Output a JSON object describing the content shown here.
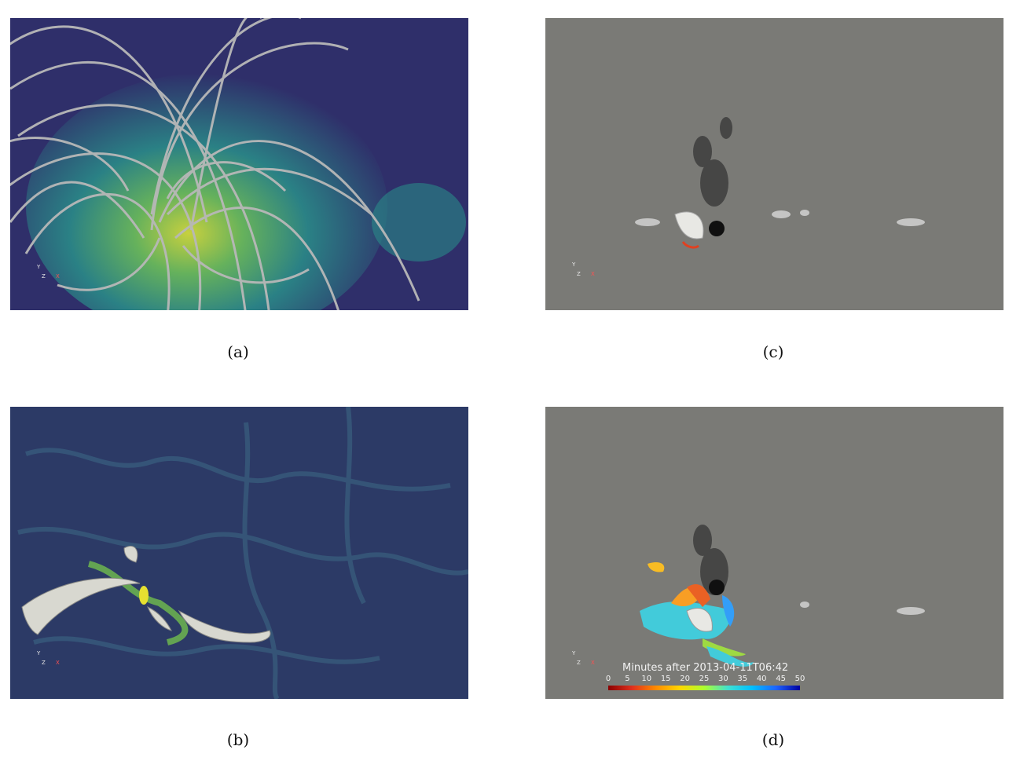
{
  "panels": [
    {
      "id": "a",
      "caption": "(a)",
      "background": "#30306a",
      "content": "EUV intensity map with grey magnetic field lines"
    },
    {
      "id": "b",
      "caption": "(b)",
      "background": "#2c3a66",
      "content": "Intensity map with white flux-rope field lines"
    },
    {
      "id": "c",
      "caption": "(c)",
      "background": "#7a7a76",
      "content": "Grayscale magnetogram with small flux rope"
    },
    {
      "id": "d",
      "caption": "(d)",
      "background": "#7a7a76",
      "content": "Grayscale magnetogram with flare ribbons colored by time"
    }
  ],
  "axis_triad": {
    "y": "Y",
    "z": "Z",
    "x": "X"
  },
  "colorbar": {
    "title": "Minutes after 2013-04-11T06:42",
    "ticks": [
      "0",
      "5",
      "10",
      "15",
      "20",
      "25",
      "30",
      "35",
      "40",
      "45",
      "50"
    ],
    "colormap": [
      "#8b0000",
      "#e0301e",
      "#ff8c00",
      "#ffd700",
      "#adff2f",
      "#40e0d0",
      "#00bfff",
      "#1e64ff",
      "#0000a0"
    ]
  }
}
